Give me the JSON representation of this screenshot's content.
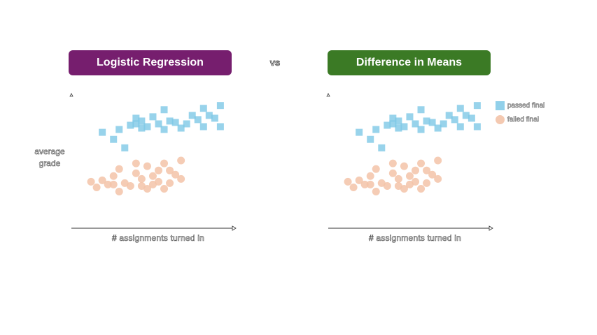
{
  "titles": {
    "left": "Logistic Regression",
    "right": "Difference in Means",
    "vs": "vs",
    "left_color": "#761e6e",
    "right_color": "#3b7a25"
  },
  "axes": {
    "xlabel": "# assignments turned in",
    "ylabel": "average grade"
  },
  "legend": {
    "passed": "passed final",
    "failed": "failed final",
    "passed_color": "#7ec8e6",
    "failed_color": "#f3c3a8"
  },
  "chart_data": [
    {
      "type": "scatter",
      "title": "Logistic Regression",
      "xlabel": "# assignments turned in",
      "ylabel": "average grade",
      "series": [
        {
          "name": "passed final",
          "marker": "square",
          "points": [
            [
              2,
              6.3
            ],
            [
              3,
              5.8
            ],
            [
              3.5,
              6.5
            ],
            [
              4,
              5.2
            ],
            [
              4.5,
              6.8
            ],
            [
              5,
              7.3
            ],
            [
              5,
              6.9
            ],
            [
              5.5,
              6.6
            ],
            [
              5.5,
              7.1
            ],
            [
              6,
              6.7
            ],
            [
              6.5,
              7.4
            ],
            [
              7,
              6.9
            ],
            [
              7.5,
              7.9
            ],
            [
              7.5,
              6.5
            ],
            [
              8,
              7.1
            ],
            [
              8.5,
              7.0
            ],
            [
              9,
              6.6
            ],
            [
              9.5,
              6.9
            ],
            [
              10,
              7.5
            ],
            [
              10.5,
              7.2
            ],
            [
              11,
              8.0
            ],
            [
              11,
              6.7
            ],
            [
              11.5,
              7.5
            ],
            [
              12,
              7.3
            ],
            [
              12.5,
              8.2
            ],
            [
              12.5,
              6.7
            ]
          ]
        },
        {
          "name": "failed final",
          "marker": "circle",
          "points": [
            [
              1,
              2.8
            ],
            [
              1.5,
              2.4
            ],
            [
              2,
              2.9
            ],
            [
              2.5,
              2.6
            ],
            [
              3,
              3.2
            ],
            [
              3,
              2.6
            ],
            [
              3.5,
              2.1
            ],
            [
              3.5,
              3.7
            ],
            [
              4,
              2.7
            ],
            [
              4.5,
              2.5
            ],
            [
              5,
              3.4
            ],
            [
              5,
              4.1
            ],
            [
              5.5,
              3.0
            ],
            [
              5.5,
              2.5
            ],
            [
              6,
              2.3
            ],
            [
              6,
              3.9
            ],
            [
              6.5,
              3.2
            ],
            [
              6.5,
              2.6
            ],
            [
              7,
              3.6
            ],
            [
              7,
              2.8
            ],
            [
              7.5,
              2.3
            ],
            [
              7.5,
              4.1
            ],
            [
              8,
              3.6
            ],
            [
              8,
              2.7
            ],
            [
              8.5,
              3.3
            ],
            [
              9,
              4.3
            ],
            [
              9,
              3.0
            ]
          ]
        }
      ]
    },
    {
      "type": "scatter",
      "title": "Difference in Means",
      "xlabel": "# assignments turned in",
      "series": [
        {
          "name": "passed final",
          "marker": "square",
          "points": [
            [
              2,
              6.3
            ],
            [
              3,
              5.8
            ],
            [
              3.5,
              6.5
            ],
            [
              4,
              5.2
            ],
            [
              4.5,
              6.8
            ],
            [
              5,
              7.3
            ],
            [
              5,
              6.9
            ],
            [
              5.5,
              6.6
            ],
            [
              5.5,
              7.1
            ],
            [
              6,
              6.7
            ],
            [
              6.5,
              7.4
            ],
            [
              7,
              6.9
            ],
            [
              7.5,
              7.9
            ],
            [
              7.5,
              6.5
            ],
            [
              8,
              7.1
            ],
            [
              8.5,
              7.0
            ],
            [
              9,
              6.6
            ],
            [
              9.5,
              6.9
            ],
            [
              10,
              7.5
            ],
            [
              10.5,
              7.2
            ],
            [
              11,
              8.0
            ],
            [
              11,
              6.7
            ],
            [
              11.5,
              7.5
            ],
            [
              12,
              7.3
            ],
            [
              12.5,
              8.2
            ],
            [
              12.5,
              6.7
            ]
          ]
        },
        {
          "name": "failed final",
          "marker": "circle",
          "points": [
            [
              1,
              2.8
            ],
            [
              1.5,
              2.4
            ],
            [
              2,
              2.9
            ],
            [
              2.5,
              2.6
            ],
            [
              3,
              3.2
            ],
            [
              3,
              2.6
            ],
            [
              3.5,
              2.1
            ],
            [
              3.5,
              3.7
            ],
            [
              4,
              2.7
            ],
            [
              4.5,
              2.5
            ],
            [
              5,
              3.4
            ],
            [
              5,
              4.1
            ],
            [
              5.5,
              3.0
            ],
            [
              5.5,
              2.5
            ],
            [
              6,
              2.3
            ],
            [
              6,
              3.9
            ],
            [
              6.5,
              3.2
            ],
            [
              6.5,
              2.6
            ],
            [
              7,
              3.6
            ],
            [
              7,
              2.8
            ],
            [
              7.5,
              2.3
            ],
            [
              7.5,
              4.1
            ],
            [
              8,
              3.6
            ],
            [
              8,
              2.7
            ],
            [
              8.5,
              3.3
            ],
            [
              9,
              4.3
            ],
            [
              9,
              3.0
            ]
          ]
        }
      ]
    }
  ]
}
